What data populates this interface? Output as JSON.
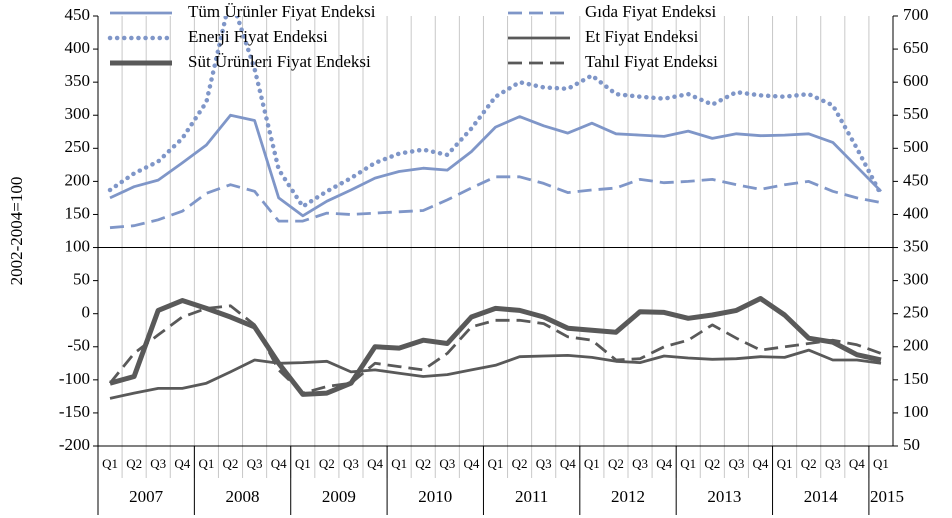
{
  "chart_data": {
    "type": "line",
    "y_label": "2002-2004=100",
    "categories": [
      "Q1",
      "Q2",
      "Q3",
      "Q4",
      "Q1",
      "Q2",
      "Q3",
      "Q4",
      "Q1",
      "Q2",
      "Q3",
      "Q4",
      "Q1",
      "Q2",
      "Q3",
      "Q4",
      "Q1",
      "Q2",
      "Q3",
      "Q4",
      "Q1",
      "Q2",
      "Q3",
      "Q4",
      "Q1",
      "Q2",
      "Q3",
      "Q4",
      "Q1",
      "Q2",
      "Q3",
      "Q4",
      "Q1"
    ],
    "years": [
      "2007",
      "2008",
      "2009",
      "2010",
      "2011",
      "2012",
      "2013",
      "2014",
      "2015"
    ],
    "ylim": [
      -200,
      450
    ],
    "yticks": [
      -200,
      -150,
      -100,
      -50,
      0,
      50,
      100,
      150,
      200,
      250,
      300,
      350,
      400,
      450
    ],
    "y2lim": [
      50,
      700
    ],
    "y2ticks": [
      50,
      100,
      150,
      200,
      250,
      300,
      350,
      400,
      450,
      500,
      550,
      600,
      650,
      700
    ],
    "grid": true,
    "series": [
      {
        "name": "Tüm Ürünler Fiyat Endeksi",
        "color": "#7f96c8",
        "style": "solid",
        "weight": "normal",
        "values": [
          175,
          192,
          202,
          228,
          255,
          300,
          292,
          175,
          148,
          170,
          187,
          205,
          215,
          220,
          217,
          245,
          282,
          298,
          284,
          273,
          288,
          272,
          270,
          268,
          276,
          265,
          272,
          269,
          270,
          272,
          259,
          222,
          185
        ]
      },
      {
        "name": "Gıda Fiyat Endeksi",
        "color": "#7f96c8",
        "style": "dashed",
        "weight": "normal",
        "values": [
          130,
          133,
          142,
          155,
          182,
          195,
          185,
          140,
          140,
          152,
          150,
          152,
          154,
          156,
          172,
          190,
          207,
          207,
          197,
          183,
          187,
          190,
          203,
          198,
          200,
          203,
          195,
          188,
          195,
          200,
          185,
          175,
          168
        ]
      },
      {
        "name": "Enerji Fiyat Endeksi",
        "color": "#7f96c8",
        "style": "dotted",
        "weight": "normal",
        "axis": "y2",
        "values": [
          437,
          462,
          480,
          515,
          570,
          730,
          620,
          468,
          412,
          435,
          455,
          478,
          492,
          498,
          490,
          530,
          578,
          600,
          592,
          590,
          610,
          582,
          578,
          575,
          582,
          566,
          585,
          580,
          578,
          582,
          565,
          500,
          430
        ]
      },
      {
        "name": "Et Fiyat Endeksi",
        "color": "#595959",
        "style": "solid",
        "weight": "normal",
        "axis": "y2",
        "values": [
          122,
          130,
          137,
          137,
          145,
          162,
          180,
          175,
          176,
          178,
          162,
          165,
          160,
          155,
          158,
          165,
          172,
          185,
          186,
          187,
          184,
          178,
          176,
          186,
          183,
          181,
          182,
          185,
          184,
          195,
          180,
          180,
          175
        ]
      },
      {
        "name": "Süt Ürünleri Fiyat Endeksi",
        "color": "#595959",
        "style": "solid",
        "weight": "thick",
        "axis": "y2",
        "values": [
          145,
          155,
          255,
          270,
          258,
          245,
          230,
          175,
          128,
          130,
          145,
          200,
          198,
          210,
          205,
          245,
          258,
          255,
          245,
          228,
          225,
          222,
          253,
          252,
          243,
          248,
          255,
          273,
          248,
          213,
          207,
          188,
          180
        ]
      },
      {
        "name": "Tahıl Fiyat Endeksi",
        "color": "#595959",
        "style": "dashed",
        "weight": "normal",
        "axis": "y2",
        "values": [
          145,
          190,
          218,
          245,
          258,
          262,
          233,
          165,
          130,
          140,
          145,
          175,
          170,
          165,
          190,
          230,
          240,
          240,
          235,
          215,
          210,
          180,
          182,
          200,
          210,
          233,
          213,
          195,
          200,
          205,
          210,
          203,
          190
        ]
      }
    ]
  }
}
